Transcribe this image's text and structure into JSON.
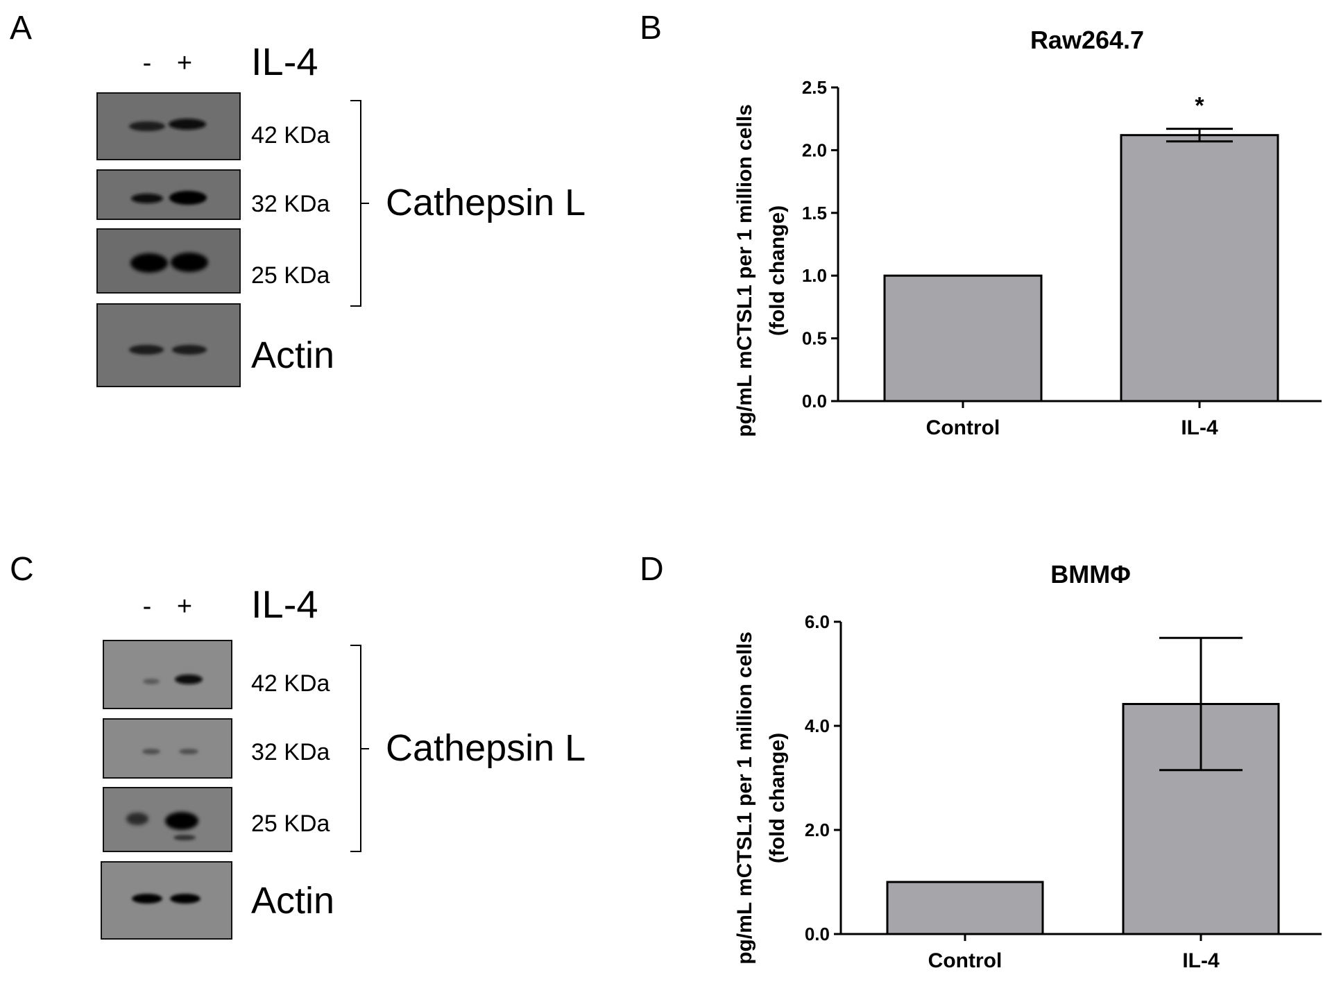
{
  "panels": {
    "a": "A",
    "b": "B",
    "c": "C",
    "d": "D"
  },
  "blot_a": {
    "lane_minus": "-",
    "lane_plus": "+",
    "treatment": "IL-4",
    "kda_42": "42 KDa",
    "kda_32": "32 KDa",
    "kda_25": "25 KDa",
    "protein": "Cathepsin L",
    "loading": "Actin"
  },
  "blot_c": {
    "lane_minus": "-",
    "lane_plus": "+",
    "treatment": "IL-4",
    "kda_42": "42 KDa",
    "kda_32": "32 KDa",
    "kda_25": "25 KDa",
    "protein": "Cathepsin L",
    "loading": "Actin"
  },
  "chart_data": [
    {
      "type": "bar",
      "title": "Raw264.7",
      "ylabel": "pg/mL mCTSL1 per 1 million cells",
      "ylabel2": "(fold change)",
      "xlabel": "",
      "categories": [
        "Control",
        "IL-4"
      ],
      "values": [
        1.0,
        2.12
      ],
      "error": [
        0,
        0.05
      ],
      "ylim": [
        0,
        2.5
      ],
      "yticks": [
        "0.0",
        "0.5",
        "1.0",
        "1.5",
        "2.0",
        "2.5"
      ],
      "annotations": [
        "",
        "*"
      ],
      "bar_color": "#a6a6aa",
      "grid": false
    },
    {
      "type": "bar",
      "title": "BMMΦ",
      "ylabel": "pg/mL mCTSL1 per 1 million cells",
      "ylabel2": "(fold change)",
      "xlabel": "",
      "categories": [
        "Control",
        "IL-4"
      ],
      "values": [
        1.0,
        4.42
      ],
      "error": [
        0,
        1.27
      ],
      "ylim": [
        0,
        6.0
      ],
      "yticks": [
        "0.0",
        "2.0",
        "4.0",
        "6.0"
      ],
      "annotations": [
        "",
        ""
      ],
      "bar_color": "#a6a6aa",
      "grid": false
    }
  ]
}
